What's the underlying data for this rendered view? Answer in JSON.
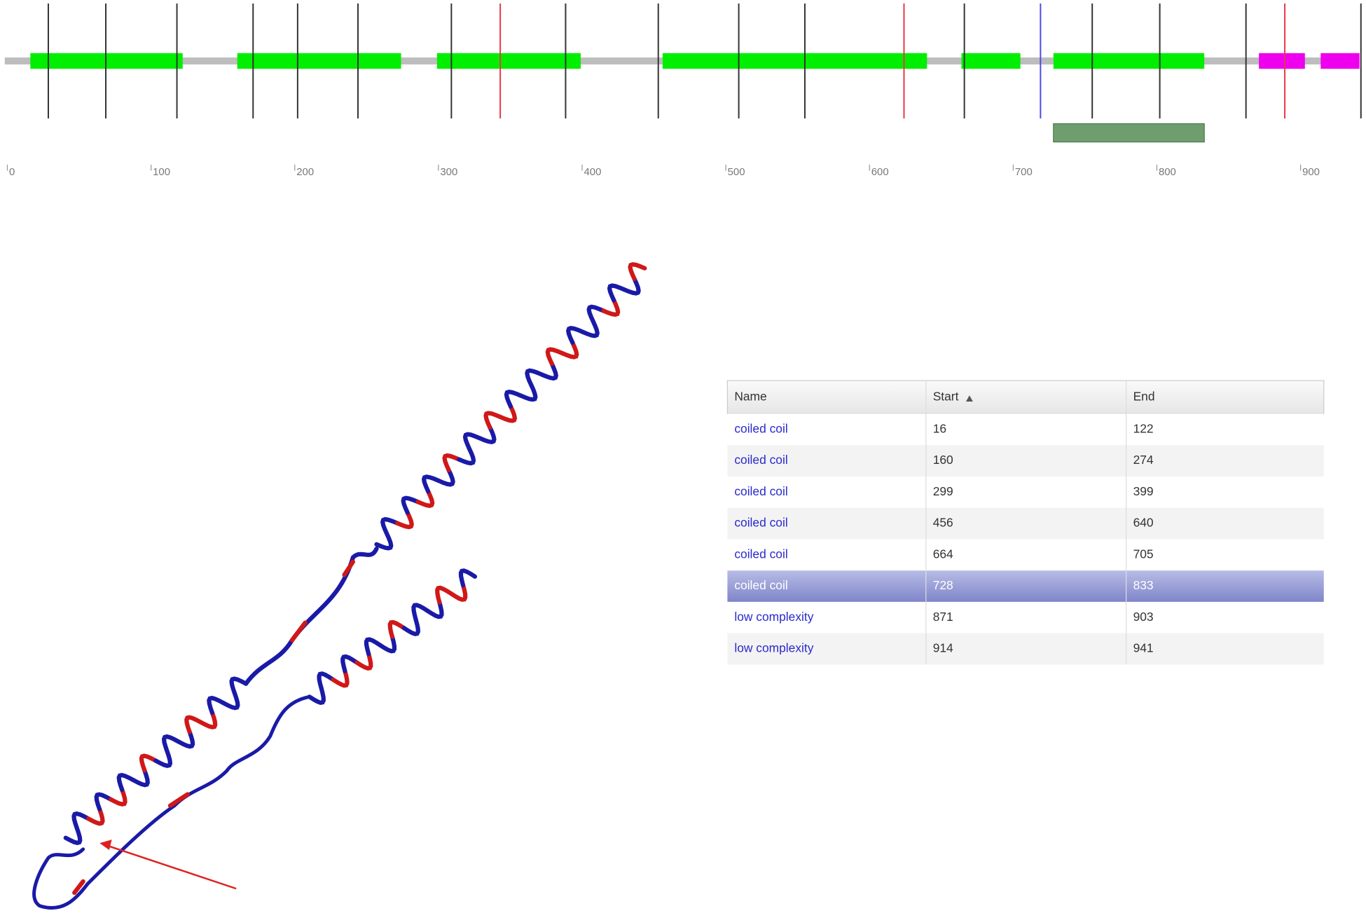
{
  "track": {
    "xlim": [
      0,
      941
    ],
    "xticks": [
      0,
      100,
      200,
      300,
      400,
      500,
      600,
      700,
      800,
      900
    ],
    "line_color": "#bdbdbd",
    "domain_colors": [
      "#00ee00",
      "#00ee00",
      "#00ee00",
      "#00ee00",
      "#00ee00",
      "#00ee00",
      "#ee00ee",
      "#ee00ee"
    ],
    "selected_color": "#6e9e6e",
    "sites": [
      {
        "color": "#333333",
        "positions": [
          28.5,
          68.5,
          118,
          171,
          202,
          244,
          309,
          388.5,
          453,
          509,
          555,
          666,
          755,
          802,
          862,
          942
        ]
      },
      {
        "color": "#e8384a",
        "positions": [
          343,
          624,
          889
        ]
      },
      {
        "color": "#4a4ae8",
        "positions": [
          719
        ]
      }
    ]
  },
  "table": {
    "columns": [
      "Name",
      "Start",
      "End"
    ],
    "rows": [
      [
        "coiled coil",
        16,
        122
      ],
      [
        "coiled coil",
        160,
        274
      ],
      [
        "coiled coil",
        299,
        399
      ],
      [
        "coiled coil",
        456,
        640
      ],
      [
        "coiled coil",
        664,
        705
      ],
      [
        "coiled coil",
        728,
        833
      ],
      [
        "low complexity",
        871,
        903
      ],
      [
        "low complexity",
        914,
        941
      ]
    ],
    "selected_row": 5
  }
}
